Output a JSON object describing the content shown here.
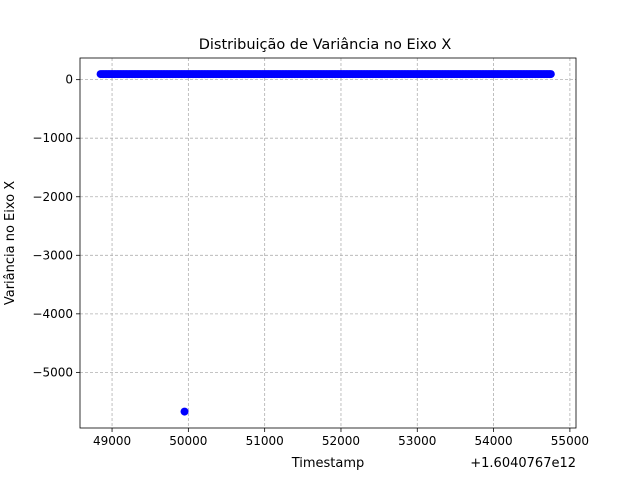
{
  "chart_data": {
    "type": "scatter",
    "title": "Distribuição de Variância no Eixo X",
    "xlabel": "Timestamp",
    "ylabel": "Variância no Eixo X",
    "x_offset_label": "+1.6040767e12",
    "xlim": [
      48580,
      55080
    ],
    "ylim": [
      -5950,
      370
    ],
    "x_ticks": [
      49000,
      50000,
      51000,
      52000,
      53000,
      54000,
      55000
    ],
    "x_tick_labels": [
      "49000",
      "50000",
      "51000",
      "52000",
      "53000",
      "54000",
      "55000"
    ],
    "y_ticks": [
      0,
      -1000,
      -2000,
      -3000,
      -4000,
      -5000
    ],
    "y_tick_labels": [
      "0",
      "−1000",
      "−2000",
      "−3000",
      "−4000",
      "−5000"
    ],
    "grid": true,
    "color": "#0000ff",
    "outliers": [
      {
        "x": 49950,
        "y": -5670
      }
    ],
    "dense_band": {
      "x_start": 48850,
      "x_end": 54750,
      "x_step": 20,
      "y": 95
    }
  }
}
